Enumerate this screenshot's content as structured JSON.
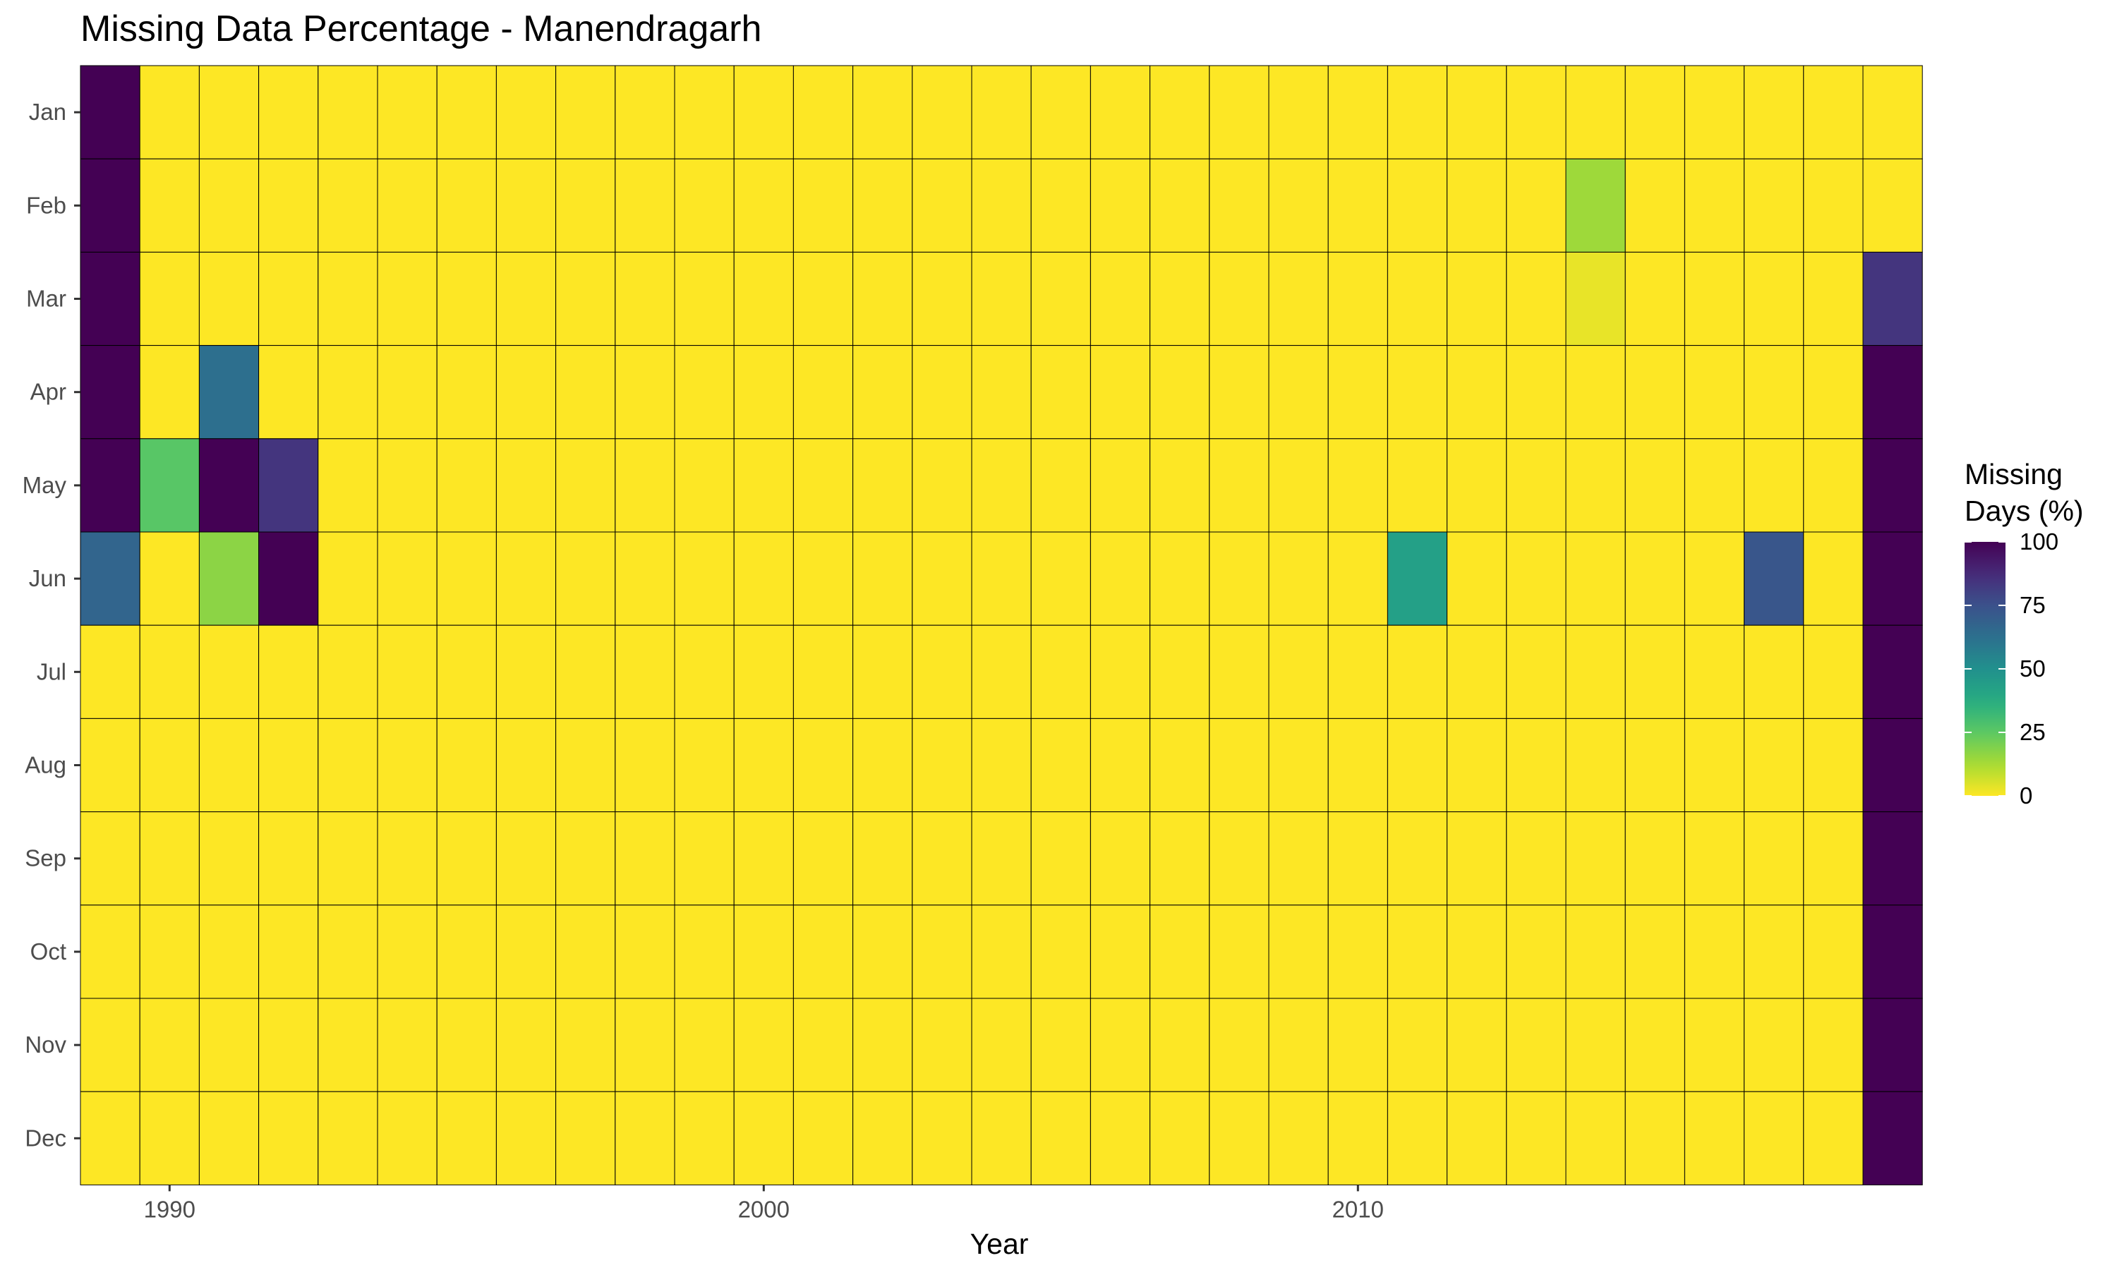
{
  "chart_data": {
    "type": "heatmap",
    "title": "Missing Data Percentage - Manendragarh",
    "xlabel": "Year",
    "ylabel": "",
    "x": [
      1989,
      1990,
      1991,
      1992,
      1993,
      1994,
      1995,
      1996,
      1997,
      1998,
      1999,
      2000,
      2001,
      2002,
      2003,
      2004,
      2005,
      2006,
      2007,
      2008,
      2009,
      2010,
      2011,
      2012,
      2013,
      2014,
      2015,
      2016,
      2017,
      2018,
      2019
    ],
    "x_ticks": [
      1990,
      2000,
      2010
    ],
    "x_tick_labels": [
      "1990",
      "2000",
      "2010"
    ],
    "y": [
      "Jan",
      "Feb",
      "Mar",
      "Apr",
      "May",
      "Jun",
      "Jul",
      "Aug",
      "Sep",
      "Oct",
      "Nov",
      "Dec"
    ],
    "z_default": 0,
    "z": [
      {
        "year": 1989,
        "month": "Jan",
        "value": 100
      },
      {
        "year": 1989,
        "month": "Feb",
        "value": 100
      },
      {
        "year": 1989,
        "month": "Mar",
        "value": 100
      },
      {
        "year": 1989,
        "month": "Apr",
        "value": 100
      },
      {
        "year": 1989,
        "month": "May",
        "value": 100
      },
      {
        "year": 1989,
        "month": "Jun",
        "value": 67
      },
      {
        "year": 1990,
        "month": "May",
        "value": 26
      },
      {
        "year": 1991,
        "month": "Apr",
        "value": 63
      },
      {
        "year": 1991,
        "month": "May",
        "value": 100
      },
      {
        "year": 1991,
        "month": "Jun",
        "value": 17
      },
      {
        "year": 1992,
        "month": "May",
        "value": 84
      },
      {
        "year": 1992,
        "month": "Jun",
        "value": 100
      },
      {
        "year": 2011,
        "month": "Jun",
        "value": 43
      },
      {
        "year": 2014,
        "month": "Feb",
        "value": 14
      },
      {
        "year": 2014,
        "month": "Mar",
        "value": 3
      },
      {
        "year": 2017,
        "month": "Jun",
        "value": 73
      },
      {
        "year": 2019,
        "month": "Mar",
        "value": 84
      },
      {
        "year": 2019,
        "month": "Apr",
        "value": 100
      },
      {
        "year": 2019,
        "month": "May",
        "value": 100
      },
      {
        "year": 2019,
        "month": "Jun",
        "value": 100
      },
      {
        "year": 2019,
        "month": "Jul",
        "value": 100
      },
      {
        "year": 2019,
        "month": "Aug",
        "value": 100
      },
      {
        "year": 2019,
        "month": "Sep",
        "value": 100
      },
      {
        "year": 2019,
        "month": "Oct",
        "value": 100
      },
      {
        "year": 2019,
        "month": "Nov",
        "value": 100
      },
      {
        "year": 2019,
        "month": "Dec",
        "value": 100
      }
    ],
    "zlim": [
      0,
      100
    ],
    "colorscale": "viridis-reversed",
    "legend": {
      "title_lines": [
        "Missing",
        "Days (%)"
      ],
      "ticks": [
        0,
        25,
        50,
        75,
        100
      ],
      "tick_labels": [
        "0",
        "25",
        "50",
        "75",
        "100"
      ],
      "position": "right"
    },
    "grid": false,
    "cell_border_color": "#000000"
  }
}
